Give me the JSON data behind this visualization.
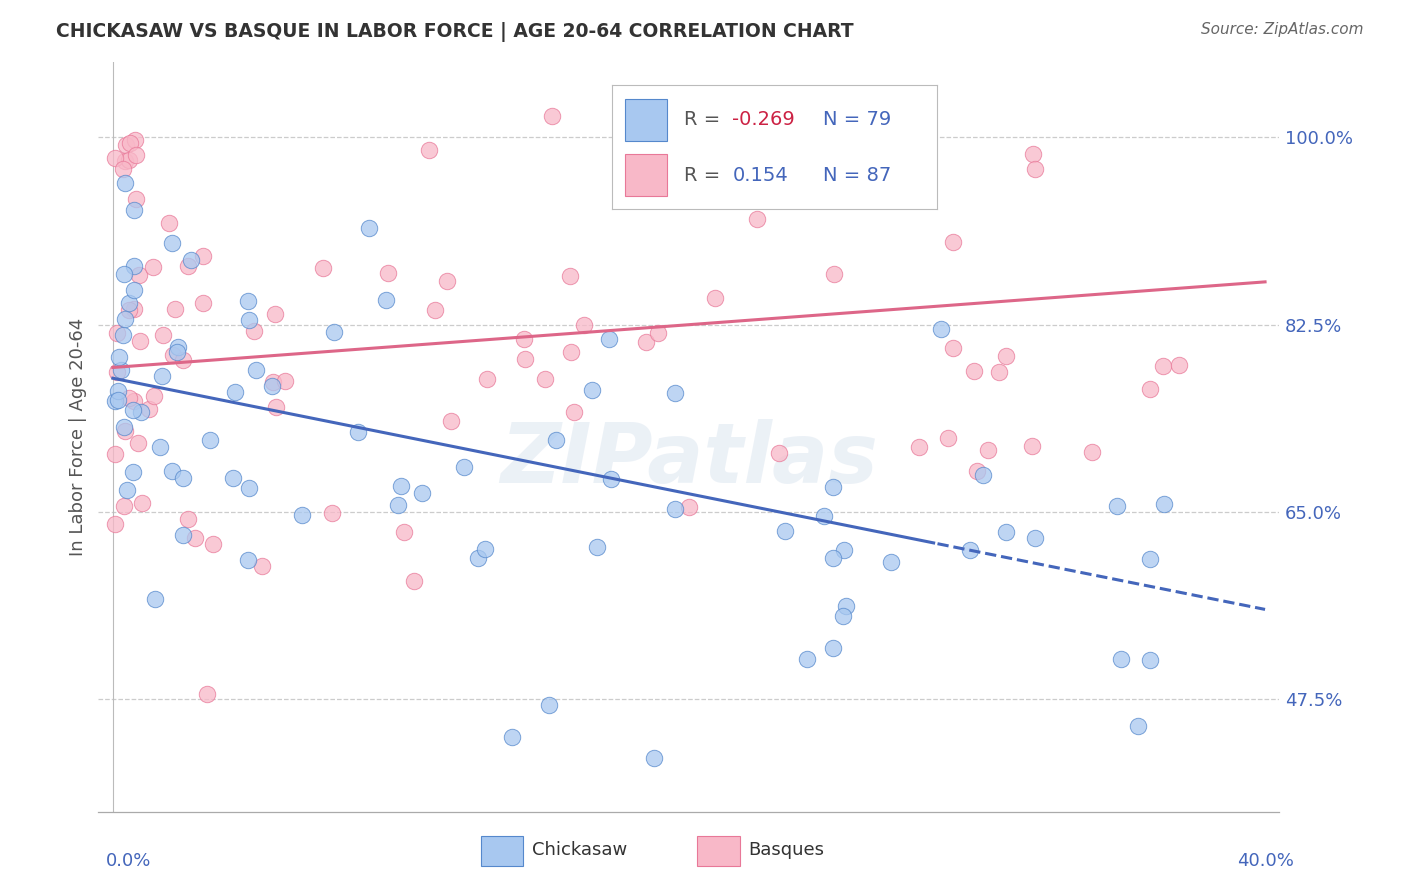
{
  "title": "CHICKASAW VS BASQUE IN LABOR FORCE | AGE 20-64 CORRELATION CHART",
  "source": "Source: ZipAtlas.com",
  "ylabel": "In Labor Force | Age 20-64",
  "ytick_labels": [
    "100.0%",
    "82.5%",
    "65.0%",
    "47.5%"
  ],
  "ytick_values": [
    1.0,
    0.825,
    0.65,
    0.475
  ],
  "xlim": [
    0.0,
    0.4
  ],
  "ylim": [
    0.38,
    1.07
  ],
  "legend_blue_R": "-0.269",
  "legend_blue_N": "79",
  "legend_pink_R": "0.154",
  "legend_pink_N": "87",
  "watermark": "ZIPatlas",
  "blue_fill": "#A8C8F0",
  "pink_fill": "#F8B8C8",
  "blue_edge": "#5588CC",
  "pink_edge": "#E87898",
  "blue_line": "#4466BB",
  "pink_line": "#DD6688",
  "title_color": "#333333",
  "source_color": "#666666",
  "axis_label_color": "#4466BB",
  "grid_color": "#cccccc",
  "ylabel_color": "#555555"
}
